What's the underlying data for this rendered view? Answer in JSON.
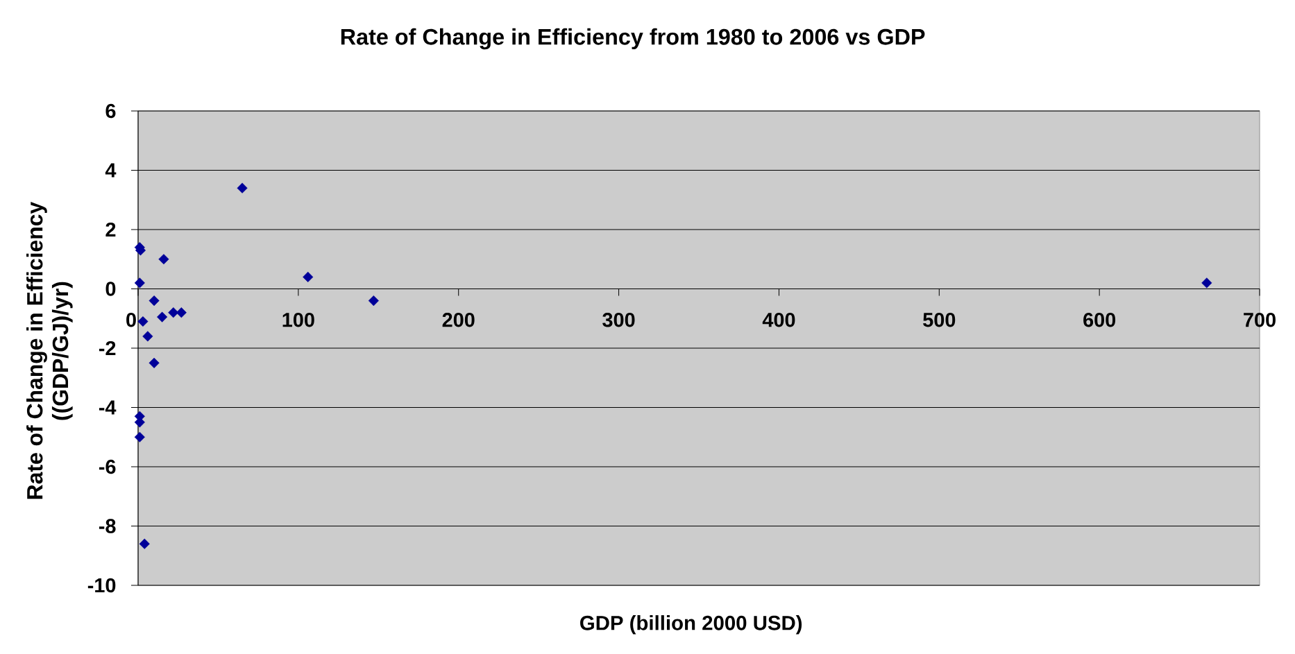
{
  "chart_data": {
    "type": "scatter",
    "title": "Rate of Change in Efficiency from 1980 to 2006 vs GDP",
    "xlabel": "GDP (billion 2000 USD)",
    "ylabel": "Rate of Change in Efficiency ((GDP/GJ)/yr)",
    "x": [
      1,
      1.5,
      1,
      1,
      1,
      1,
      3,
      4,
      6,
      10,
      10,
      15,
      16,
      22,
      27,
      65,
      106,
      147,
      667
    ],
    "values": [
      1.4,
      1.3,
      0.2,
      -4.3,
      -4.5,
      -5.0,
      -1.1,
      -8.6,
      -1.6,
      -0.4,
      -2.5,
      -0.95,
      1.0,
      -0.8,
      -0.8,
      3.4,
      0.4,
      -0.4,
      0.2
    ],
    "color": "#000099",
    "marker": "diamond",
    "grid": "y",
    "xlim": [
      0,
      700
    ],
    "ylim": [
      -10,
      6
    ],
    "xticks": [
      0,
      100,
      200,
      300,
      400,
      500,
      600,
      700
    ],
    "yticks": [
      -10,
      -8,
      -6,
      -4,
      -2,
      0,
      2,
      4,
      6
    ]
  }
}
